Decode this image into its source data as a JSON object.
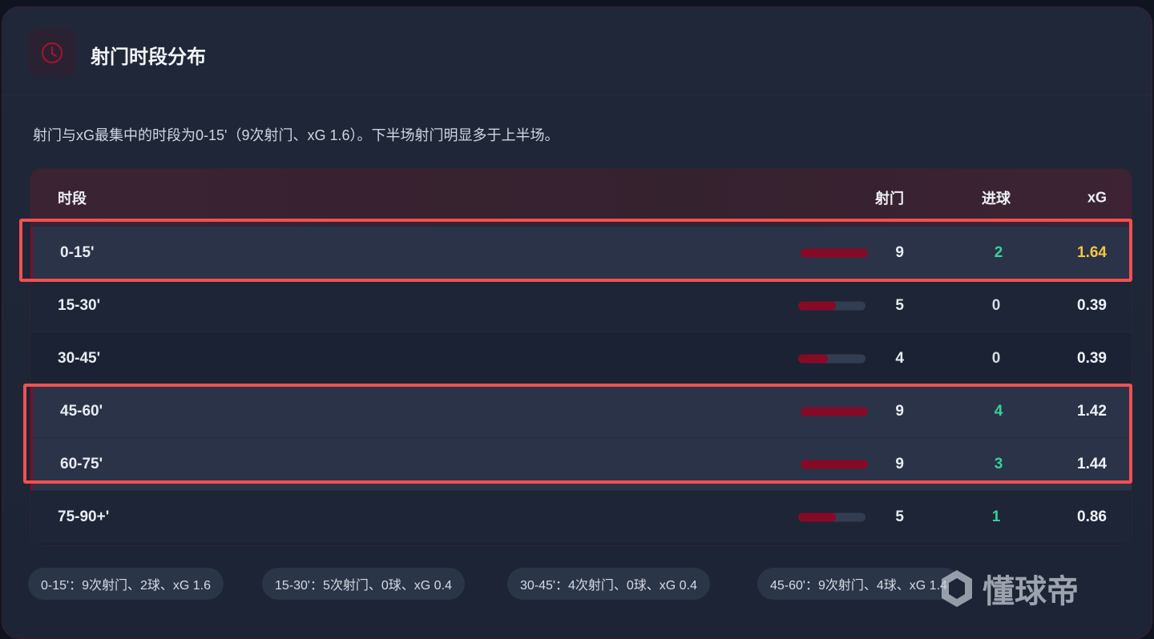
{
  "header": {
    "title": "射门时段分布",
    "icon": "clock-icon"
  },
  "description": "射门与xG最集中的时段为0-15'（9次射门、xG 1.6）。下半场射门明显多于上半场。",
  "table": {
    "columns": {
      "period": "时段",
      "shots": "射门",
      "goals": "进球",
      "xg": "xG"
    },
    "max_shots": 9,
    "rows": [
      {
        "period": "0-15'",
        "shots": "9",
        "goals": "2",
        "xg": "1.64",
        "highlight": true,
        "xg_color": "#f5c542"
      },
      {
        "period": "15-30'",
        "shots": "5",
        "goals": "0",
        "xg": "0.39",
        "highlight": false
      },
      {
        "period": "30-45'",
        "shots": "4",
        "goals": "0",
        "xg": "0.39",
        "highlight": false
      },
      {
        "period": "45-60'",
        "shots": "9",
        "goals": "4",
        "xg": "1.42",
        "highlight": true
      },
      {
        "period": "60-75'",
        "shots": "9",
        "goals": "3",
        "xg": "1.44",
        "highlight": true
      },
      {
        "period": "75-90+'",
        "shots": "5",
        "goals": "1",
        "xg": "0.86",
        "highlight": false
      }
    ]
  },
  "chips": [
    "0-15'：9次射门、2球、xG 1.6",
    "15-30'：5次射门、0球、xG 0.4",
    "30-45'：4次射门、0球、xG 0.4",
    "45-60'：9次射门、4球、xG 1.4"
  ],
  "watermark": "懂球帝",
  "colors": {
    "accent": "#860a26",
    "goal": "#34d399",
    "xg_top": "#f5c542",
    "annotation": "#f25050"
  }
}
